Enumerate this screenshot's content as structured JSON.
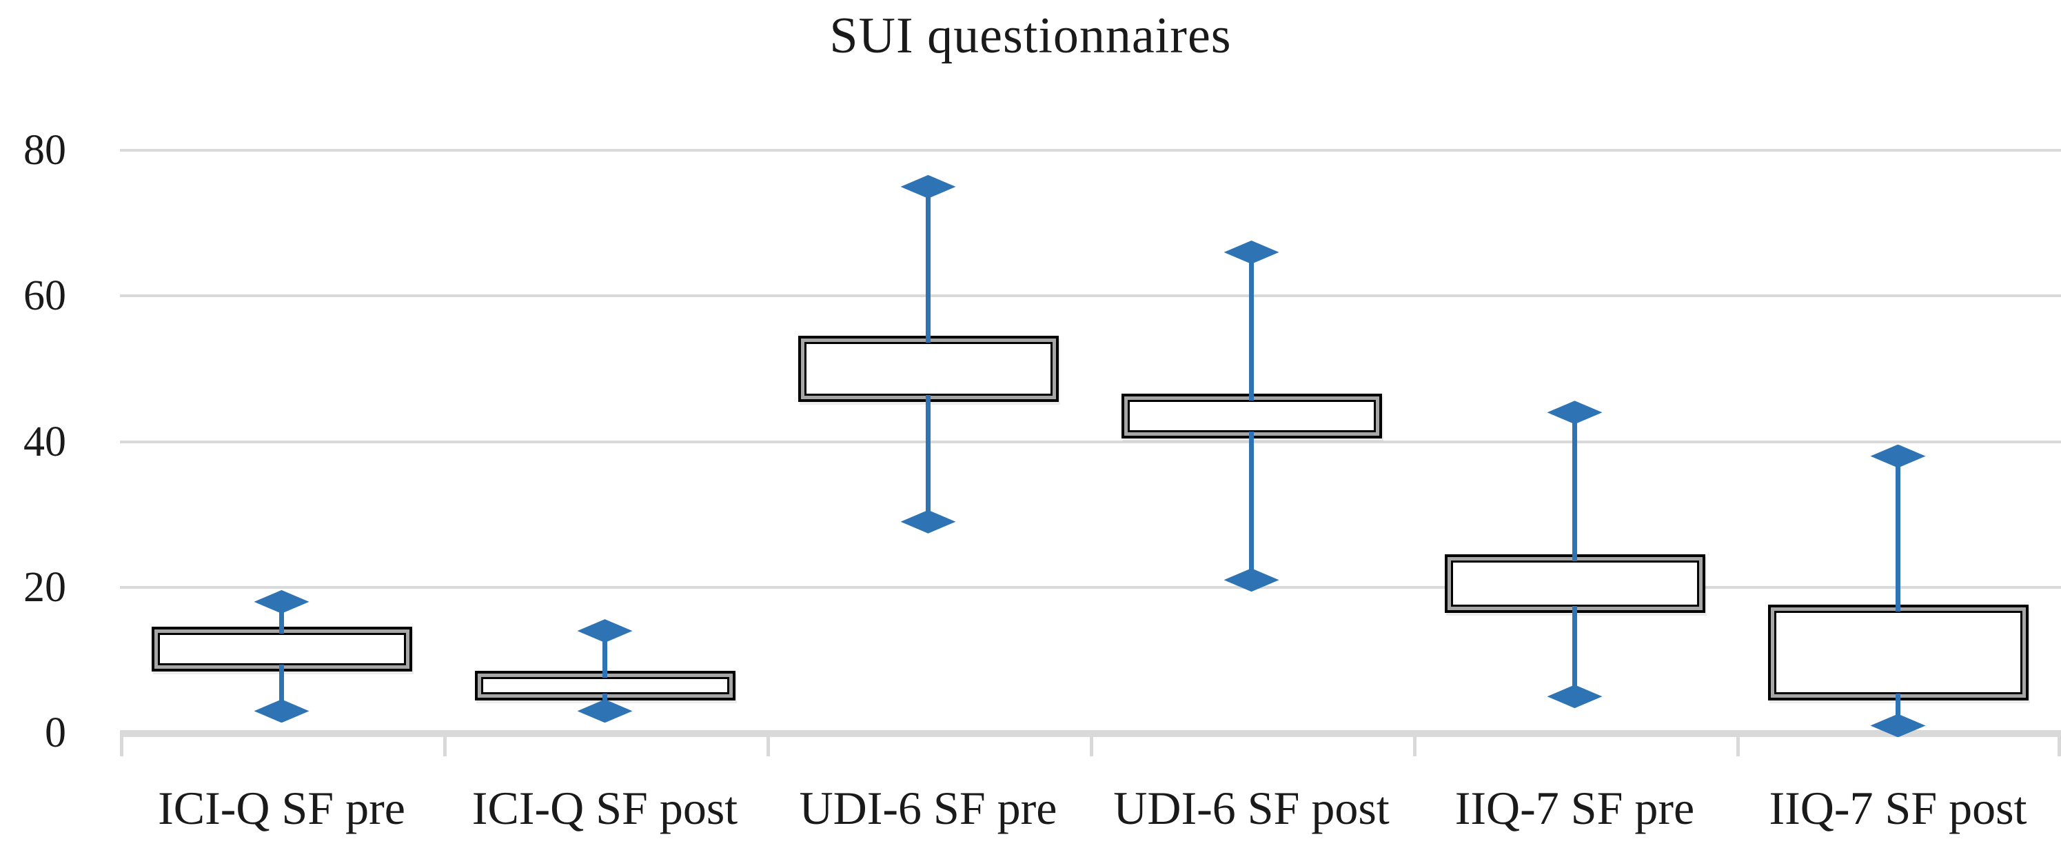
{
  "chart_data": {
    "type": "box",
    "title": "SUI questionnaires",
    "categories": [
      "ICI-Q SF pre",
      "ICI-Q SF post",
      "UDI-6 SF pre",
      "UDI-6 SF post",
      "IIQ-7 SF pre",
      "IIQ-7 SF post"
    ],
    "series": [
      {
        "category": "ICI-Q SF pre",
        "min": 3,
        "q1": 9,
        "q3": 14,
        "max": 18
      },
      {
        "category": "ICI-Q SF post",
        "min": 3,
        "q1": 5,
        "q3": 8,
        "max": 14
      },
      {
        "category": "UDI-6 SF pre",
        "min": 29,
        "q1": 46,
        "q3": 54,
        "max": 75
      },
      {
        "category": "UDI-6 SF post",
        "min": 21,
        "q1": 41,
        "q3": 46,
        "max": 66
      },
      {
        "category": "IIQ-7 SF pre",
        "min": 5,
        "q1": 17,
        "q3": 24,
        "max": 44
      },
      {
        "category": "IIQ-7 SF post",
        "min": 1,
        "q1": 5,
        "q3": 17,
        "max": 38
      }
    ],
    "ylim": [
      0,
      80
    ],
    "yticks": [
      0,
      20,
      40,
      60,
      80
    ],
    "xlabel": "",
    "ylabel": "",
    "grid": true,
    "legend": false,
    "median_shown": false,
    "colors": {
      "whisker_and_marker": "#2E74B5",
      "box_border": "#000000",
      "box_border_gray_band": "#A6A6A6",
      "box_fill": "#FFFFFF",
      "gridline": "#D9D9D9",
      "text": "#1A1A1A",
      "background": "#FFFFFF"
    }
  }
}
